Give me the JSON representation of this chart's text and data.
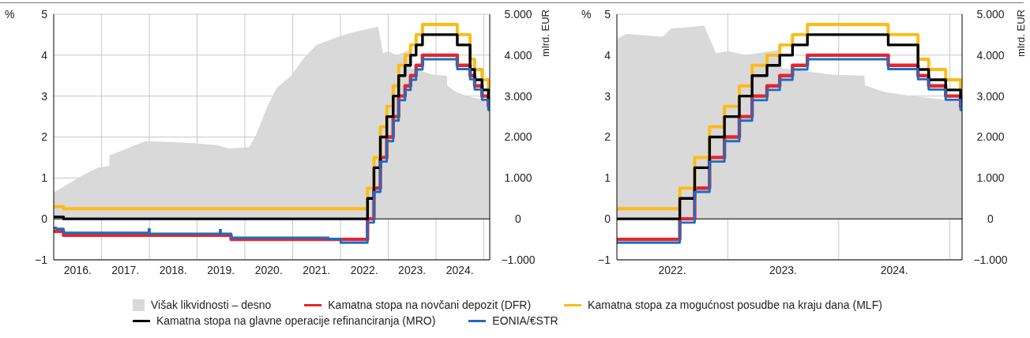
{
  "chart_data": [
    {
      "type": "step",
      "ylabel": "%",
      "y2label": "mlrd. EUR",
      "xlim": [
        "2016-01-01",
        "2025-02-15"
      ],
      "xticks": [
        {
          "value": "2016-07-02",
          "label": "2016."
        },
        {
          "value": "2017-01-01",
          "label": null
        },
        {
          "value": "2017-07-02",
          "label": "2017."
        },
        {
          "value": "2018-01-01",
          "label": null
        },
        {
          "value": "2018-07-02",
          "label": "2018."
        },
        {
          "value": "2019-01-01",
          "label": null
        },
        {
          "value": "2019-07-02",
          "label": "2019."
        },
        {
          "value": "2020-01-01",
          "label": null
        },
        {
          "value": "2020-07-02",
          "label": "2020."
        },
        {
          "value": "2021-01-01",
          "label": null
        },
        {
          "value": "2021-07-02",
          "label": "2021."
        },
        {
          "value": "2022-01-01",
          "label": null
        },
        {
          "value": "2022-07-02",
          "label": "2022."
        },
        {
          "value": "2023-01-01",
          "label": null
        },
        {
          "value": "2023-07-02",
          "label": "2023."
        },
        {
          "value": "2024-01-01",
          "label": null
        },
        {
          "value": "2024-07-02",
          "label": "2024."
        },
        {
          "value": "2025-01-01",
          "label": null
        }
      ],
      "ylim": [
        -1,
        5
      ],
      "yticks": [
        {
          "value": -1,
          "label": "−1"
        },
        0,
        1,
        2,
        3,
        4,
        5
      ],
      "y2lim": [
        -1000,
        5000
      ],
      "y2ticks": [
        {
          "value": -1000,
          "label": "−1.000"
        },
        0,
        {
          "value": 1000,
          "label": "1.000"
        },
        {
          "value": 2000,
          "label": "2.000"
        },
        {
          "value": 3000,
          "label": "3.000"
        },
        {
          "value": 4000,
          "label": "4.000"
        },
        {
          "value": 5000,
          "label": "5.000"
        }
      ],
      "grid": true,
      "legend": "bottom",
      "marker": "none",
      "line_style": "solid",
      "ref_lines": [
        {
          "axis": "y",
          "value": 0,
          "color": "#000000"
        }
      ],
      "series": [
        {
          "name": "Višak likvidnosti – desno",
          "type": "area",
          "axis": "y2",
          "color": "#d9d9d9",
          "x": [
            "2016-01-01",
            "2016-04-01",
            "2016-08-01",
            "2016-12-01",
            "2017-03-01",
            "2017-03-02",
            "2017-07-01",
            "2017-12-01",
            "2018-06-01",
            "2018-12-01",
            "2019-06-01",
            "2019-09-01",
            "2020-02-01",
            "2020-03-20",
            "2020-06-28",
            "2020-09-01",
            "2020-12-15",
            "2021-04-01",
            "2021-07-01",
            "2021-12-15",
            "2022-04-01",
            "2022-10-15",
            "2022-11-23",
            "2023-01-01",
            "2023-03-01",
            "2023-06-20",
            "2023-06-28",
            "2023-09-01",
            "2023-12-15",
            "2024-03-25",
            "2024-03-28",
            "2024-06-01",
            "2024-09-01",
            "2025-01-01",
            "2025-02-15"
          ],
          "values": [
            650,
            820,
            1050,
            1250,
            1300,
            1550,
            1700,
            1900,
            1880,
            1850,
            1800,
            1720,
            1750,
            2000,
            2800,
            3200,
            3480,
            3950,
            4250,
            4450,
            4550,
            4700,
            4050,
            4100,
            4000,
            4130,
            3680,
            3620,
            3520,
            3500,
            3260,
            3100,
            3000,
            2900,
            2850
          ]
        },
        {
          "name": "Kamatna stopa na novčani depozit (DFR)",
          "color": "#e3262c",
          "x": [
            "2016-01-01",
            "2016-03-16",
            "2019-09-18",
            "2022-07-27",
            "2022-09-14",
            "2022-11-02",
            "2022-12-21",
            "2023-02-08",
            "2023-03-22",
            "2023-05-10",
            "2023-06-21",
            "2023-08-02",
            "2023-09-20",
            "2024-06-12",
            "2024-09-18",
            "2024-10-23",
            "2024-12-18",
            "2025-02-05",
            "2025-02-15"
          ],
          "values": [
            -0.3,
            -0.4,
            -0.5,
            0,
            0.75,
            1.5,
            2,
            2.5,
            3,
            3.25,
            3.5,
            3.75,
            4,
            3.75,
            3.5,
            3.25,
            3,
            2.75,
            2.75
          ]
        },
        {
          "name": "Kamatna stopa za mogućnost posudbe na kraju dana (MLF)",
          "color": "#fdbb14",
          "x": [
            "2016-01-01",
            "2016-03-16",
            "2022-07-27",
            "2022-09-14",
            "2022-11-02",
            "2022-12-21",
            "2023-02-08",
            "2023-03-22",
            "2023-05-10",
            "2023-06-21",
            "2023-08-02",
            "2023-09-20",
            "2024-06-12",
            "2024-09-18",
            "2024-10-23",
            "2024-12-18",
            "2025-02-05",
            "2025-02-15"
          ],
          "values": [
            0.3,
            0.25,
            0.75,
            1.5,
            2.25,
            2.75,
            3.25,
            3.75,
            4,
            4.25,
            4.5,
            4.75,
            4.5,
            3.9,
            3.65,
            3.4,
            3.15,
            3.15
          ]
        },
        {
          "name": "Kamatna stopa na glavne operacije refinanciranja (MRO)",
          "color": "#000000",
          "x": [
            "2016-01-01",
            "2016-03-16",
            "2022-07-27",
            "2022-09-14",
            "2022-11-02",
            "2022-12-21",
            "2023-02-08",
            "2023-03-22",
            "2023-05-10",
            "2023-06-21",
            "2023-08-02",
            "2023-09-20",
            "2024-06-12",
            "2024-09-18",
            "2024-10-23",
            "2024-12-18",
            "2025-02-05",
            "2025-02-15"
          ],
          "values": [
            0.05,
            0,
            0.5,
            1.25,
            2,
            2.5,
            3,
            3.5,
            3.75,
            4,
            4.25,
            4.5,
            4.25,
            3.65,
            3.4,
            3.15,
            2.9,
            2.9
          ]
        },
        {
          "name": "EONIA/€STR",
          "color": "#1b6ec2",
          "x": [
            "2016-01-01",
            "2016-01-20",
            "2016-03-16",
            "2017-12-28",
            "2018-01-03",
            "2019-06-25",
            "2019-07-01",
            "2019-09-18",
            "2021-10-01",
            "2022-01-03",
            "2022-07-27",
            "2022-09-14",
            "2022-11-02",
            "2022-12-21",
            "2023-02-08",
            "2023-03-22",
            "2023-05-10",
            "2023-06-21",
            "2023-08-02",
            "2023-09-20",
            "2024-06-12",
            "2024-09-18",
            "2024-10-23",
            "2024-12-18",
            "2025-02-05",
            "2025-02-15"
          ],
          "values": [
            -0.22,
            -0.24,
            -0.34,
            -0.25,
            -0.36,
            -0.27,
            -0.36,
            -0.46,
            -0.49,
            -0.58,
            -0.09,
            0.66,
            1.4,
            1.9,
            2.4,
            2.9,
            3.15,
            3.4,
            3.65,
            3.9,
            3.66,
            3.41,
            3.16,
            2.91,
            2.66,
            2.66
          ]
        }
      ]
    },
    {
      "type": "step",
      "ylabel": "%",
      "y2label": "mlrd. EUR",
      "xlim": [
        "2022-01-01",
        "2025-02-10"
      ],
      "xticks": [
        {
          "value": "2022-07-02",
          "label": "2022."
        },
        {
          "value": "2023-01-01",
          "label": null
        },
        {
          "value": "2023-07-02",
          "label": "2023."
        },
        {
          "value": "2024-01-01",
          "label": null
        },
        {
          "value": "2024-07-02",
          "label": "2024."
        },
        {
          "value": "2025-01-01",
          "label": null
        }
      ],
      "ylim": [
        -1,
        5
      ],
      "yticks": [
        {
          "value": -1,
          "label": "−1"
        },
        0,
        1,
        2,
        3,
        4,
        5
      ],
      "y2lim": [
        -1000,
        5000
      ],
      "y2ticks": [
        {
          "value": -1000,
          "label": "−1.000"
        },
        0,
        {
          "value": 1000,
          "label": "1.000"
        },
        {
          "value": 2000,
          "label": "2.000"
        },
        {
          "value": 3000,
          "label": "3.000"
        },
        {
          "value": 4000,
          "label": "4.000"
        },
        {
          "value": 5000,
          "label": "5.000"
        }
      ],
      "grid": true,
      "marker": "none",
      "line_style": "solid",
      "ref_lines": [
        {
          "axis": "y",
          "value": 0,
          "color": "#000000"
        }
      ],
      "series": [
        {
          "type": "area",
          "axis": "y2",
          "color": "#d9d9d9",
          "x": [
            "2022-01-01",
            "2022-02-01",
            "2022-06-01",
            "2022-06-28",
            "2022-10-15",
            "2022-11-23",
            "2023-01-01",
            "2023-03-01",
            "2023-06-20",
            "2023-06-28",
            "2023-09-01",
            "2023-12-15",
            "2024-03-25",
            "2024-03-28",
            "2024-06-01",
            "2024-09-01",
            "2025-01-01",
            "2025-02-10"
          ],
          "values": [
            4390,
            4520,
            4450,
            4650,
            4720,
            4050,
            4100,
            4000,
            4130,
            3680,
            3620,
            3520,
            3500,
            3260,
            3100,
            3000,
            2900,
            2850
          ]
        },
        {
          "color": "#e3262c",
          "x": [
            "2022-01-01",
            "2022-07-27",
            "2022-09-14",
            "2022-11-02",
            "2022-12-21",
            "2023-02-08",
            "2023-03-22",
            "2023-05-10",
            "2023-06-21",
            "2023-08-02",
            "2023-09-20",
            "2024-06-12",
            "2024-09-18",
            "2024-10-23",
            "2024-12-18",
            "2025-02-05",
            "2025-02-10"
          ],
          "values": [
            -0.5,
            0,
            0.75,
            1.5,
            2,
            2.5,
            3,
            3.25,
            3.5,
            3.75,
            4,
            3.75,
            3.5,
            3.25,
            3,
            2.75,
            2.75
          ]
        },
        {
          "color": "#fdbb14",
          "x": [
            "2022-01-01",
            "2022-07-27",
            "2022-09-14",
            "2022-11-02",
            "2022-12-21",
            "2023-02-08",
            "2023-03-22",
            "2023-05-10",
            "2023-06-21",
            "2023-08-02",
            "2023-09-20",
            "2024-06-12",
            "2024-09-18",
            "2024-10-23",
            "2024-12-18",
            "2025-02-05",
            "2025-02-10"
          ],
          "values": [
            0.25,
            0.75,
            1.5,
            2.25,
            2.75,
            3.25,
            3.75,
            4,
            4.25,
            4.5,
            4.75,
            4.5,
            3.9,
            3.65,
            3.4,
            3.15,
            3.15
          ]
        },
        {
          "color": "#000000",
          "x": [
            "2022-01-01",
            "2022-07-27",
            "2022-09-14",
            "2022-11-02",
            "2022-12-21",
            "2023-02-08",
            "2023-03-22",
            "2023-05-10",
            "2023-06-21",
            "2023-08-02",
            "2023-09-20",
            "2024-06-12",
            "2024-09-18",
            "2024-10-23",
            "2024-12-18",
            "2025-02-05",
            "2025-02-10"
          ],
          "values": [
            0,
            0.5,
            1.25,
            2,
            2.5,
            3,
            3.5,
            3.75,
            4,
            4.25,
            4.5,
            4.25,
            3.65,
            3.4,
            3.15,
            2.9,
            2.9
          ]
        },
        {
          "color": "#1b6ec2",
          "x": [
            "2022-01-01",
            "2022-07-27",
            "2022-09-14",
            "2022-11-02",
            "2022-12-21",
            "2023-02-08",
            "2023-03-22",
            "2023-05-10",
            "2023-06-21",
            "2023-08-02",
            "2023-09-20",
            "2024-06-12",
            "2024-09-18",
            "2024-10-23",
            "2024-12-18",
            "2025-02-05",
            "2025-02-10"
          ],
          "values": [
            -0.58,
            -0.09,
            0.66,
            1.4,
            1.9,
            2.4,
            2.9,
            3.15,
            3.4,
            3.65,
            3.9,
            3.66,
            3.41,
            3.16,
            2.91,
            2.66,
            2.66
          ]
        }
      ]
    }
  ]
}
